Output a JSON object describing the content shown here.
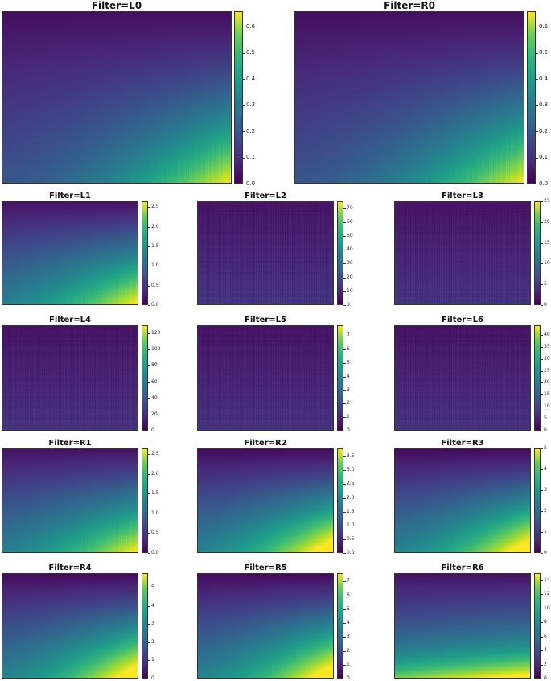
{
  "chart_data": [
    {
      "type": "heatmap",
      "title": "Filter=L0",
      "vmax": 0.66,
      "ticks": [
        "0.0",
        "0.1",
        "0.2",
        "0.3",
        "0.4",
        "0.5",
        "0.6"
      ],
      "pattern": "corner",
      "stripes": 0.35
    },
    {
      "type": "heatmap",
      "title": "Filter=R0",
      "vmax": 0.66,
      "ticks": [
        "0.0",
        "0.1",
        "0.2",
        "0.3",
        "0.4",
        "0.5",
        "0.6"
      ],
      "pattern": "corner",
      "stripes": 0.35
    },
    {
      "type": "heatmap",
      "title": "Filter=L1",
      "vmax": 2.65,
      "ticks": [
        "0.0",
        "0.5",
        "1.0",
        "1.5",
        "2.0",
        "2.5"
      ],
      "pattern": "mixed",
      "stripes": 0.3
    },
    {
      "type": "heatmap",
      "title": "Filter=L2",
      "vmax": 75,
      "ticks": [
        "0",
        "10",
        "20",
        "30",
        "40",
        "50",
        "60",
        "70"
      ],
      "pattern": "grid",
      "stripes": 1
    },
    {
      "type": "heatmap",
      "title": "Filter=L3",
      "vmax": 25,
      "ticks": [
        "0",
        "5",
        "10",
        "15",
        "20",
        "25"
      ],
      "pattern": "grid",
      "stripes": 0.9
    },
    {
      "type": "heatmap",
      "title": "Filter=L4",
      "vmax": 130,
      "ticks": [
        "0",
        "20",
        "40",
        "60",
        "80",
        "100",
        "120"
      ],
      "pattern": "grid",
      "stripes": 0.8
    },
    {
      "type": "heatmap",
      "title": "Filter=L5",
      "vmax": 7.8,
      "ticks": [
        "0",
        "1",
        "2",
        "3",
        "4",
        "5",
        "6",
        "7"
      ],
      "pattern": "grid",
      "stripes": 0.8
    },
    {
      "type": "heatmap",
      "title": "Filter=L6",
      "vmax": 44,
      "ticks": [
        "0",
        "5",
        "10",
        "15",
        "20",
        "25",
        "30",
        "35",
        "40"
      ],
      "pattern": "grid",
      "stripes": 0.8
    },
    {
      "type": "heatmap",
      "title": "Filter=R1",
      "vmax": 2.65,
      "ticks": [
        "0.0",
        "0.5",
        "1.0",
        "1.5",
        "2.0",
        "2.5"
      ],
      "pattern": "mixed",
      "stripes": 0.3
    },
    {
      "type": "heatmap",
      "title": "Filter=R2",
      "vmax": 3.8,
      "ticks": [
        "0.0",
        "0.5",
        "1.0",
        "1.5",
        "2.0",
        "2.5",
        "3.0",
        "3.5"
      ],
      "pattern": "smooth",
      "stripes": 0
    },
    {
      "type": "heatmap",
      "title": "Filter=R3",
      "vmax": 5,
      "ticks": [
        "0",
        "1",
        "2",
        "3",
        "4",
        "5"
      ],
      "pattern": "smooth",
      "stripes": 0
    },
    {
      "type": "heatmap",
      "title": "Filter=R4",
      "vmax": 5.8,
      "ticks": [
        "0",
        "1",
        "2",
        "3",
        "4",
        "5"
      ],
      "pattern": "smooth",
      "stripes": 0
    },
    {
      "type": "heatmap",
      "title": "Filter=R5",
      "vmax": 7.6,
      "ticks": [
        "0",
        "1",
        "2",
        "3",
        "4",
        "5",
        "6",
        "7"
      ],
      "pattern": "smooth",
      "stripes": 0
    },
    {
      "type": "heatmap",
      "title": "Filter=R6",
      "vmax": 15,
      "ticks": [
        "0",
        "2",
        "4",
        "6",
        "8",
        "10",
        "12",
        "14"
      ],
      "pattern": "bottom",
      "stripes": 0
    }
  ]
}
